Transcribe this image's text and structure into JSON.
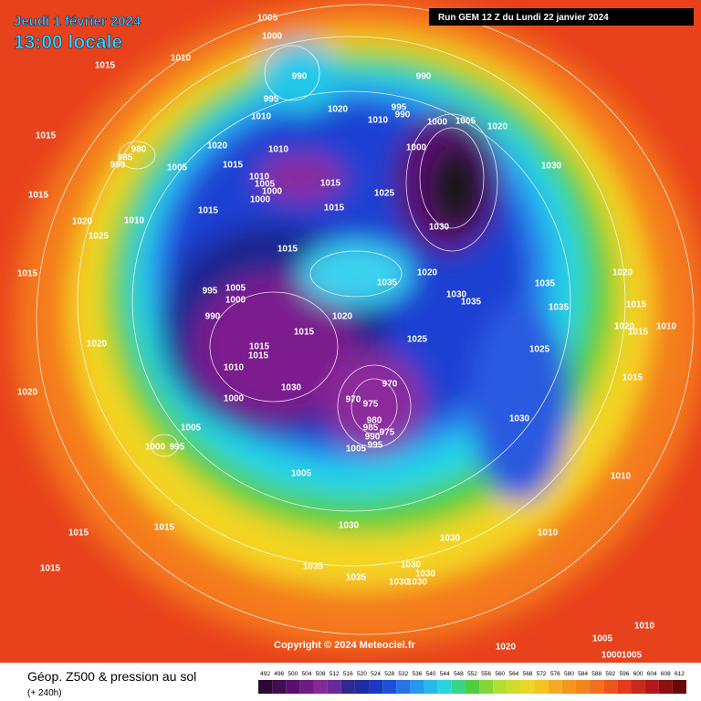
{
  "header": {
    "date": "Jeudi 1 février 2024",
    "time": "13:00 locale",
    "run": "Run GEM 12 Z du Lundi 22 janvier 2024"
  },
  "copyright": "Copyright © 2024 Meteociel.fr",
  "legend": {
    "title": "Géop. Z500 & pression au sol",
    "subtitle": "(+ 240h)",
    "scale": [
      492,
      496,
      500,
      504,
      508,
      512,
      516,
      520,
      524,
      528,
      532,
      536,
      540,
      544,
      548,
      552,
      556,
      560,
      564,
      568,
      572,
      576,
      580,
      584,
      588,
      592,
      596,
      600,
      604,
      608,
      612
    ]
  },
  "pressure_labels": [
    1005,
    1000,
    1010,
    1015,
    990,
    995,
    1010,
    1020,
    990,
    995,
    990,
    1010,
    1000,
    1005,
    1020,
    1015,
    980,
    985,
    990,
    1020,
    1010,
    1000,
    1015,
    1005,
    1030,
    1010,
    1005,
    1000,
    1000,
    1015,
    1025,
    1015,
    1015,
    1015,
    1010,
    1020,
    1030,
    1025,
    1015,
    1020,
    1015,
    995,
    1005,
    1000,
    1035,
    1030,
    1035,
    1035,
    1020,
    1035,
    990,
    1015,
    1020,
    1020,
    1015,
    1010,
    1015,
    1025,
    1020,
    1015,
    1025,
    1015,
    1010,
    1015,
    970,
    1030,
    1020,
    1000,
    970,
    975,
    980,
    985,
    975,
    990,
    1030,
    1005,
    1005,
    995,
    1000,
    995,
    1005,
    1010,
    1030,
    1015,
    1015,
    1030,
    1010,
    1015,
    1035,
    1035,
    1030,
    1030,
    1030,
    1030,
    1010,
    1020,
    1005,
    1000,
    1005
  ]
}
